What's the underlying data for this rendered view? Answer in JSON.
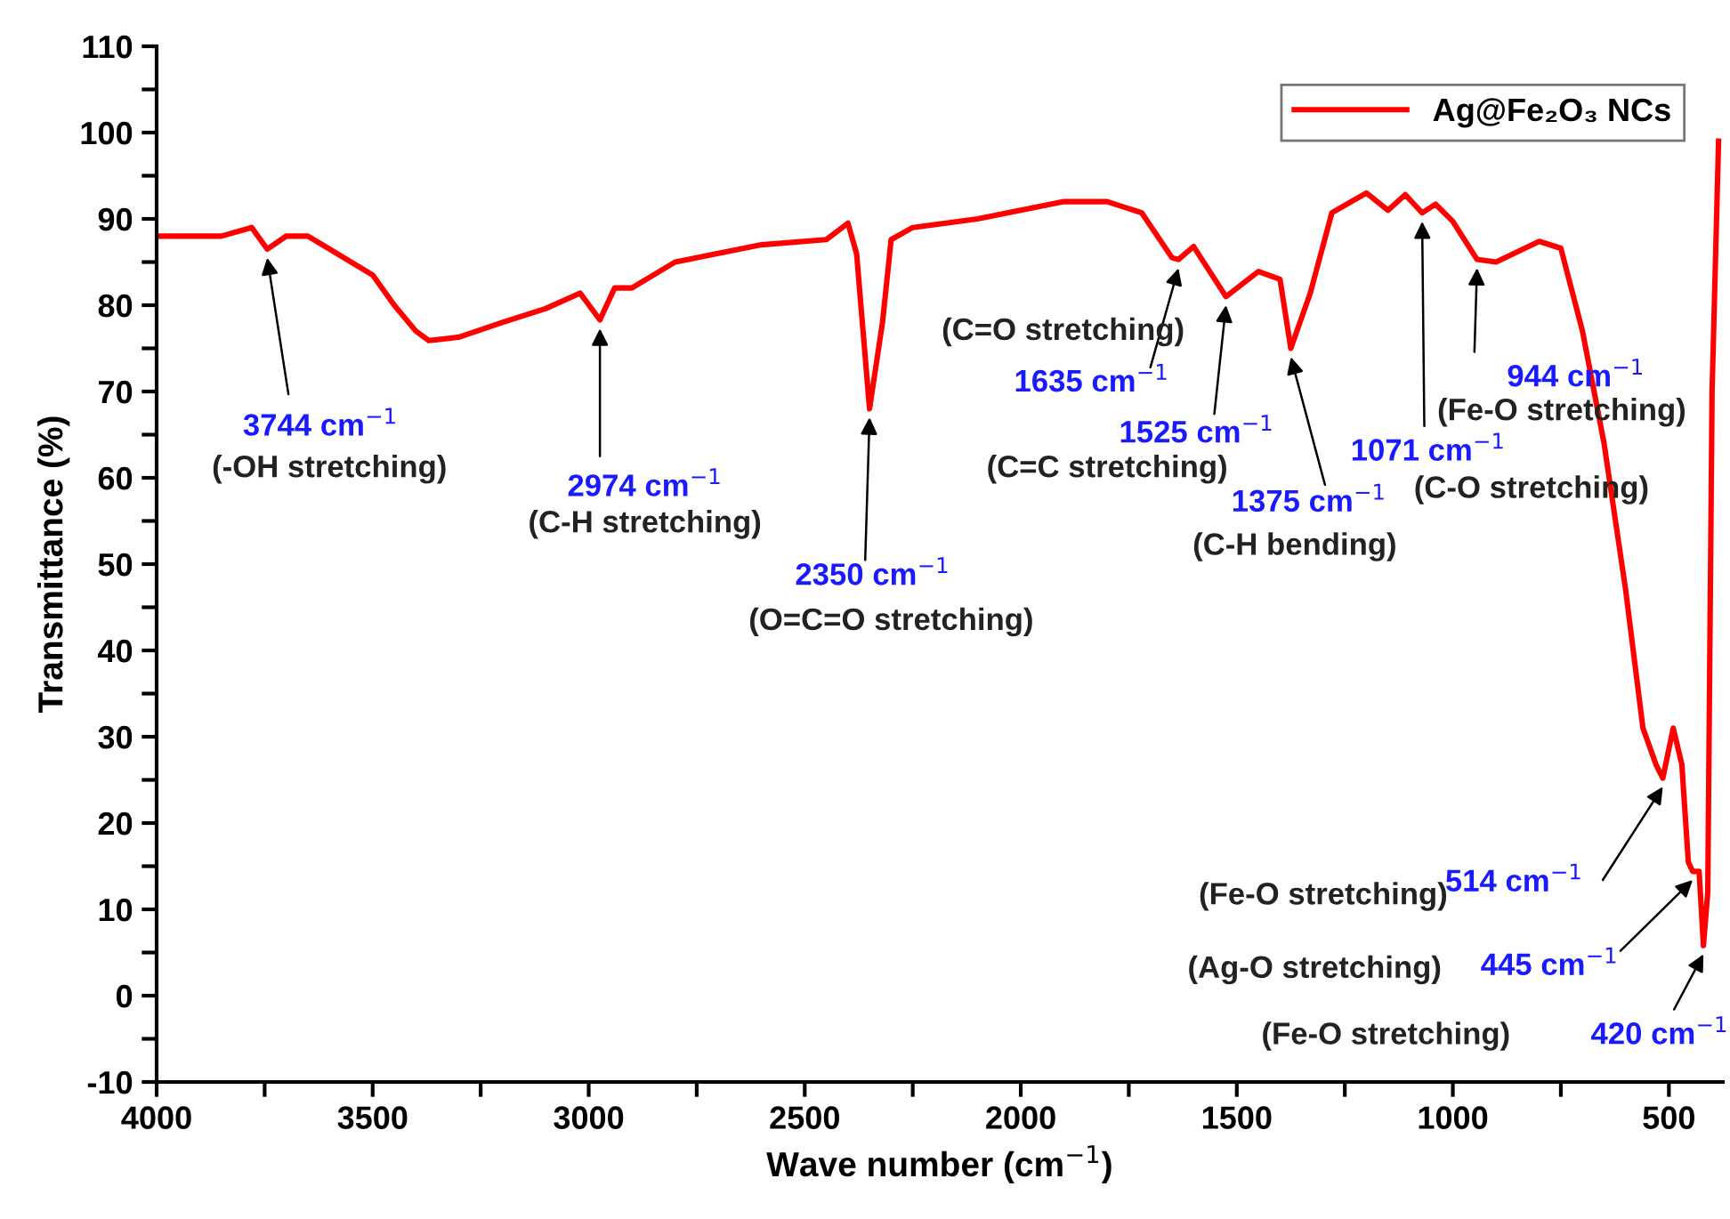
{
  "chart_data": {
    "type": "line",
    "xlabel": "Wave number (cm$^{−1}$)",
    "ylabel": "Transmittance (%)",
    "xlim": [
      4000,
      375
    ],
    "ylim": [
      -10,
      110
    ],
    "xticks": [
      4000,
      {
        "value": 3750,
        "label": null
      },
      3500,
      {
        "value": 3250,
        "label": null
      },
      3000,
      {
        "value": 2750,
        "label": null
      },
      2500,
      {
        "value": 2250,
        "label": null
      },
      2000,
      {
        "value": 1750,
        "label": null
      },
      1500,
      {
        "value": 1250,
        "label": null
      },
      1000,
      {
        "value": 750,
        "label": null
      },
      500
    ],
    "yticks": [
      -10,
      {
        "value": -5,
        "label": null
      },
      0,
      {
        "value": 5,
        "label": null
      },
      10,
      {
        "value": 15,
        "label": null
      },
      20,
      {
        "value": 25,
        "label": null
      },
      30,
      {
        "value": 35,
        "label": null
      },
      40,
      {
        "value": 45,
        "label": null
      },
      50,
      {
        "value": 55,
        "label": null
      },
      60,
      {
        "value": 65,
        "label": null
      },
      70,
      {
        "value": 75,
        "label": null
      },
      80,
      {
        "value": 85,
        "label": null
      },
      90,
      {
        "value": 95,
        "label": null
      },
      100,
      {
        "value": 105,
        "label": null
      },
      110
    ],
    "grid": false,
    "legend": "top right",
    "marker": "none",
    "line_style": "solid",
    "x": [
      4000,
      3850,
      3780,
      3744,
      3700,
      3650,
      3600,
      3500,
      3450,
      3400,
      3370,
      3300,
      3200,
      3100,
      3020,
      2974,
      2940,
      2900,
      2800,
      2700,
      2600,
      2450,
      2400,
      2380,
      2350,
      2320,
      2300,
      2250,
      2100,
      2000,
      1900,
      1800,
      1720,
      1650,
      1635,
      1600,
      1525,
      1450,
      1400,
      1375,
      1330,
      1280,
      1200,
      1150,
      1110,
      1071,
      1040,
      1000,
      944,
      900,
      800,
      750,
      700,
      650,
      600,
      560,
      530,
      514,
      490,
      470,
      455,
      445,
      430,
      420,
      410,
      400,
      385
    ],
    "series": [
      {
        "name": "Ag@Fe₂O₃ NCs",
        "color": "#ff0000",
        "values": [
          88,
          88,
          89,
          86.5,
          88,
          88,
          86.5,
          83.5,
          80,
          77,
          75.9,
          76.3,
          78,
          79.6,
          81.4,
          78.3,
          82,
          82,
          85,
          86,
          87,
          87.6,
          89.5,
          86,
          68,
          78,
          87.6,
          89,
          90,
          91,
          92,
          92,
          90.7,
          85.5,
          85.3,
          86.8,
          81,
          83.9,
          83,
          75,
          81.4,
          90.7,
          93,
          91,
          92.8,
          90.7,
          91.7,
          89.7,
          85.3,
          85,
          87.4,
          86.6,
          77,
          64,
          47,
          31,
          26.8,
          25.2,
          31,
          26.8,
          15.5,
          14.4,
          14.4,
          5.8,
          12,
          70,
          99
        ]
      }
    ],
    "annotations": [
      {
        "text": "3744 cm$^{−1}$",
        "x": 3744,
        "y": 86.5
      },
      {
        "text": "2974 cm$^{−1}$",
        "x": 2974,
        "y": 78.3
      },
      {
        "text": "2350 cm$^{−1}$",
        "x": 2350,
        "y": 68
      },
      {
        "text": "1635 cm$^{−1}$",
        "x": 1635,
        "y": 85.3
      },
      {
        "text": "1525 cm$^{−1}$",
        "x": 1525,
        "y": 81
      },
      {
        "text": "1375 cm$^{−1}$",
        "x": 1375,
        "y": 75
      },
      {
        "text": "1071 cm$^{−1}$",
        "x": 1071,
        "y": 90.7
      },
      {
        "text": "944 cm$^{−1}$",
        "x": 944,
        "y": 85.3
      },
      {
        "text": "514 cm$^{−1}$",
        "x": 514,
        "y": 25.2
      },
      {
        "text": "445 cm$^{−1}$",
        "x": 445,
        "y": 14.4
      },
      {
        "text": "420 cm$^{−1}$",
        "x": 420,
        "y": 5.8
      },
      "(-OH stretching)",
      "(C-H stretching)",
      "(O=C=O stretching)",
      "(C=O stretching)",
      "(C=C stretching)",
      "(C-H bending)",
      "(C-O stretching)",
      "(Fe-O stretching)",
      "(Fe-O stretching)",
      "(Ag-O stretching)",
      "(Fe-O stretching)"
    ]
  }
}
